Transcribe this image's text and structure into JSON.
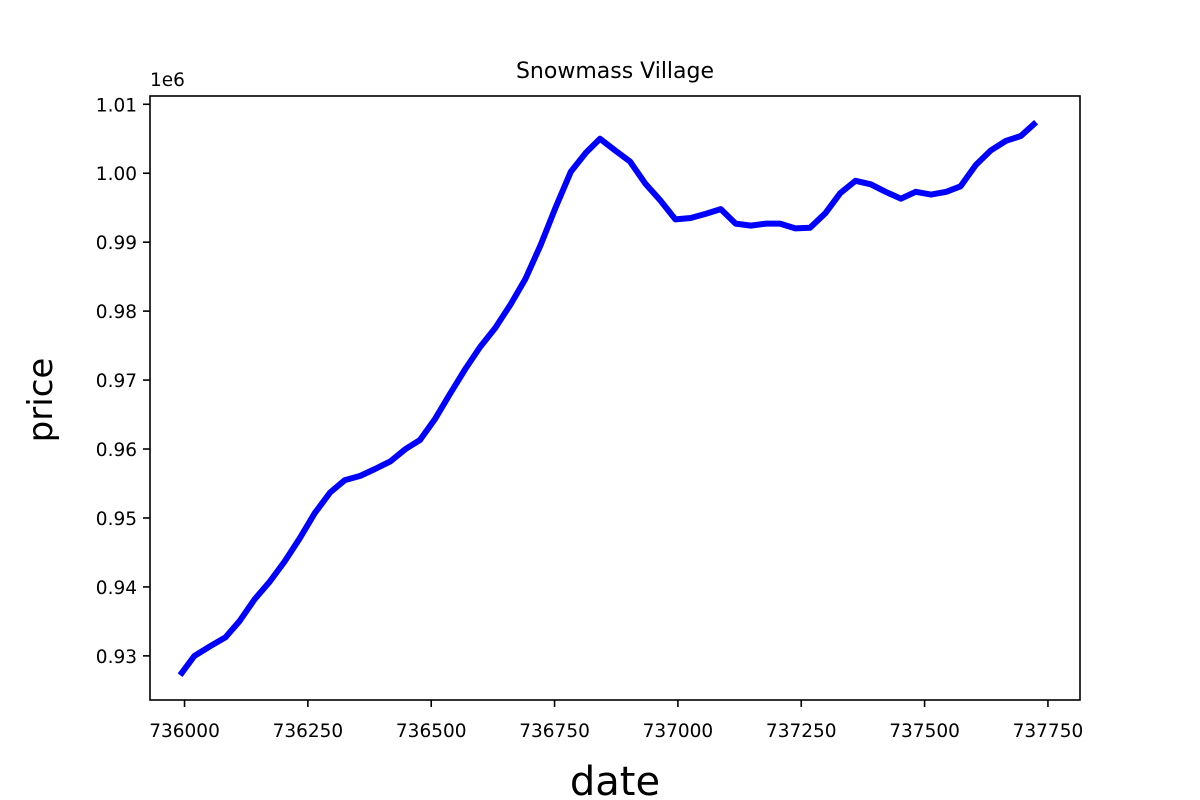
{
  "chart_data": {
    "type": "line",
    "title": "Snowmass Village",
    "xlabel": "date",
    "ylabel": "price",
    "y_offset_label": "1e6",
    "xlim": [
      735930,
      737815
    ],
    "ylim": [
      923600,
      1011200
    ],
    "x_ticks": [
      736000,
      736250,
      736500,
      736750,
      737000,
      737250,
      737500,
      737750
    ],
    "x_tick_labels": [
      "736000",
      "736250",
      "736500",
      "736750",
      "737000",
      "737250",
      "737500",
      "737750"
    ],
    "y_ticks": [
      930000,
      940000,
      950000,
      960000,
      970000,
      980000,
      990000,
      1000000,
      1010000
    ],
    "y_tick_labels": [
      "0.93",
      "0.94",
      "0.95",
      "0.96",
      "0.97",
      "0.98",
      "0.99",
      "1.00",
      "1.01"
    ],
    "grid": false,
    "series": [
      {
        "color": "#0000ff",
        "x": [
          735991,
          736020,
          736052,
          736083,
          736111,
          736142,
          736172,
          736203,
          736233,
          736264,
          736295,
          736325,
          736356,
          736386,
          736417,
          736448,
          736477,
          736508,
          736538,
          736569,
          736599,
          736630,
          736661,
          736691,
          736722,
          736752,
          736783,
          736814,
          736842,
          736873,
          736903,
          736934,
          736964,
          736995,
          737026,
          737056,
          737087,
          737117,
          737148,
          737179,
          737207,
          737238,
          737268,
          737299,
          737329,
          737360,
          737391,
          737421,
          737452,
          737482,
          737513,
          737544,
          737573,
          737604,
          737634,
          737665,
          737695,
          737726
        ],
        "y": [
          927200,
          930000,
          931400,
          932700,
          935000,
          938200,
          940700,
          943700,
          947000,
          950700,
          953700,
          955500,
          956100,
          957100,
          958200,
          960000,
          961300,
          964400,
          968000,
          971600,
          974800,
          977600,
          981000,
          984700,
          989600,
          995000,
          1000200,
          1003000,
          1005000,
          1003300,
          1001700,
          998500,
          996100,
          993300,
          993500,
          994100,
          994800,
          992700,
          992400,
          992700,
          992700,
          992000,
          992100,
          994200,
          997100,
          998900,
          998400,
          997300,
          996300,
          997300,
          996900,
          997300,
          998100,
          1001200,
          1003300,
          1004700,
          1005400,
          1007400
        ]
      }
    ]
  }
}
